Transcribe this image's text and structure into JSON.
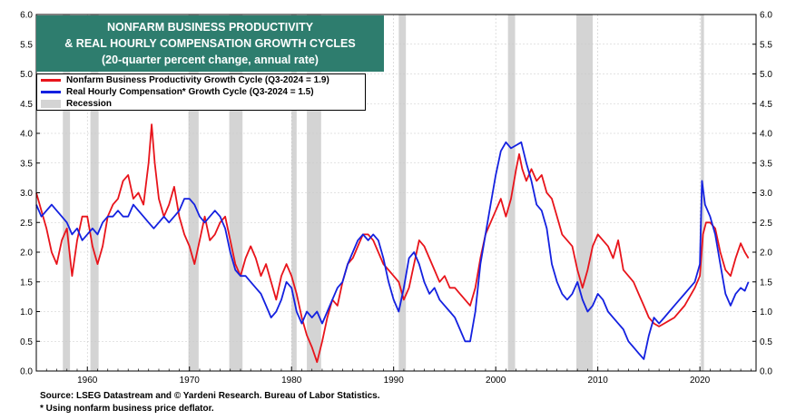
{
  "title": {
    "line1": "NONFARM BUSINESS PRODUCTIVITY",
    "line2": "& REAL HOURLY COMPENSATION GROWTH CYCLES",
    "line3": "(20-quarter percent change, annual rate)"
  },
  "legend": {
    "items": [
      {
        "label": "Nonfarm Business Productivity Growth Cycle (Q3-2024 = 1.9)",
        "color": "#e8141b"
      },
      {
        "label": "Real Hourly Compensation* Growth Cycle (Q3-2024 = 1.5)",
        "color": "#1421e0"
      },
      {
        "label": "Recession",
        "color": "#d4d4d4"
      }
    ]
  },
  "footer": {
    "source": "Source: LSEG Datastream and © Yardeni Research. Bureau of Labor Statistics.",
    "note": "* Using nonfarm business price deflator."
  },
  "chart_data": {
    "type": "line",
    "xlim": [
      1955,
      2025.5
    ],
    "ylim": [
      0,
      6
    ],
    "yticks": [
      "0.0",
      "0.5",
      "1.0",
      "1.5",
      "2.0",
      "2.5",
      "3.0",
      "3.5",
      "4.0",
      "4.5",
      "5.0",
      "5.5",
      "6.0"
    ],
    "xticks": [
      "1960",
      "1970",
      "1980",
      "1990",
      "2000",
      "2010",
      "2020"
    ],
    "grid": true,
    "legend_position": "top-left",
    "recessions": [
      [
        1957.6,
        1958.3
      ],
      [
        1960.3,
        1961.1
      ],
      [
        1969.9,
        1970.9
      ],
      [
        1973.9,
        1975.2
      ],
      [
        1980.0,
        1980.5
      ],
      [
        1981.5,
        1982.9
      ],
      [
        1990.5,
        1991.2
      ],
      [
        2001.2,
        2001.9
      ],
      [
        2007.9,
        2009.5
      ],
      [
        2020.1,
        2020.4
      ]
    ],
    "series": [
      {
        "name": "Nonfarm Business Productivity Growth Cycle (Q3-2024 = 1.9)",
        "color": "#e8141b",
        "points": [
          [
            1955.0,
            3.0
          ],
          [
            1955.5,
            2.7
          ],
          [
            1956.0,
            2.4
          ],
          [
            1956.5,
            2.0
          ],
          [
            1957.0,
            1.8
          ],
          [
            1957.5,
            2.2
          ],
          [
            1958.0,
            2.4
          ],
          [
            1958.5,
            1.6
          ],
          [
            1959.0,
            2.2
          ],
          [
            1959.5,
            2.6
          ],
          [
            1960.0,
            2.6
          ],
          [
            1960.5,
            2.1
          ],
          [
            1961.0,
            1.8
          ],
          [
            1961.5,
            2.1
          ],
          [
            1962.0,
            2.6
          ],
          [
            1962.5,
            2.8
          ],
          [
            1963.0,
            2.9
          ],
          [
            1963.5,
            3.2
          ],
          [
            1964.0,
            3.3
          ],
          [
            1964.5,
            2.9
          ],
          [
            1965.0,
            3.0
          ],
          [
            1965.5,
            2.8
          ],
          [
            1966.0,
            3.5
          ],
          [
            1966.3,
            4.15
          ],
          [
            1966.6,
            3.5
          ],
          [
            1967.0,
            2.9
          ],
          [
            1967.5,
            2.6
          ],
          [
            1968.0,
            2.8
          ],
          [
            1968.5,
            3.1
          ],
          [
            1969.0,
            2.6
          ],
          [
            1969.5,
            2.3
          ],
          [
            1970.0,
            2.1
          ],
          [
            1970.5,
            1.8
          ],
          [
            1971.0,
            2.2
          ],
          [
            1971.5,
            2.6
          ],
          [
            1972.0,
            2.2
          ],
          [
            1972.5,
            2.3
          ],
          [
            1973.0,
            2.5
          ],
          [
            1973.5,
            2.6
          ],
          [
            1974.0,
            2.2
          ],
          [
            1974.5,
            1.8
          ],
          [
            1975.0,
            1.6
          ],
          [
            1975.5,
            1.9
          ],
          [
            1976.0,
            2.1
          ],
          [
            1976.5,
            1.9
          ],
          [
            1977.0,
            1.6
          ],
          [
            1977.5,
            1.8
          ],
          [
            1978.0,
            1.5
          ],
          [
            1978.5,
            1.2
          ],
          [
            1979.0,
            1.6
          ],
          [
            1979.5,
            1.8
          ],
          [
            1980.0,
            1.6
          ],
          [
            1980.5,
            1.3
          ],
          [
            1981.0,
            0.9
          ],
          [
            1981.5,
            0.6
          ],
          [
            1982.0,
            0.4
          ],
          [
            1982.5,
            0.15
          ],
          [
            1983.0,
            0.5
          ],
          [
            1983.5,
            0.9
          ],
          [
            1984.0,
            1.2
          ],
          [
            1984.5,
            1.1
          ],
          [
            1985.0,
            1.5
          ],
          [
            1985.5,
            1.8
          ],
          [
            1986.0,
            1.9
          ],
          [
            1986.5,
            2.1
          ],
          [
            1987.0,
            2.3
          ],
          [
            1987.5,
            2.3
          ],
          [
            1988.0,
            2.2
          ],
          [
            1988.5,
            2.0
          ],
          [
            1989.0,
            1.8
          ],
          [
            1989.5,
            1.7
          ],
          [
            1990.0,
            1.6
          ],
          [
            1990.5,
            1.5
          ],
          [
            1991.0,
            1.2
          ],
          [
            1991.5,
            1.4
          ],
          [
            1992.0,
            1.8
          ],
          [
            1992.5,
            2.2
          ],
          [
            1993.0,
            2.1
          ],
          [
            1993.5,
            1.9
          ],
          [
            1994.0,
            1.7
          ],
          [
            1994.5,
            1.5
          ],
          [
            1995.0,
            1.6
          ],
          [
            1995.5,
            1.4
          ],
          [
            1996.0,
            1.4
          ],
          [
            1996.5,
            1.3
          ],
          [
            1997.0,
            1.2
          ],
          [
            1997.5,
            1.1
          ],
          [
            1998.0,
            1.4
          ],
          [
            1998.5,
            1.9
          ],
          [
            1999.0,
            2.3
          ],
          [
            1999.5,
            2.5
          ],
          [
            2000.0,
            2.7
          ],
          [
            2000.5,
            2.9
          ],
          [
            2001.0,
            2.6
          ],
          [
            2001.5,
            2.9
          ],
          [
            2002.0,
            3.4
          ],
          [
            2002.3,
            3.65
          ],
          [
            2002.6,
            3.4
          ],
          [
            2003.0,
            3.2
          ],
          [
            2003.5,
            3.4
          ],
          [
            2004.0,
            3.2
          ],
          [
            2004.5,
            3.3
          ],
          [
            2005.0,
            3.0
          ],
          [
            2005.5,
            2.9
          ],
          [
            2006.0,
            2.6
          ],
          [
            2006.5,
            2.3
          ],
          [
            2007.0,
            2.2
          ],
          [
            2007.5,
            2.1
          ],
          [
            2008.0,
            1.7
          ],
          [
            2008.5,
            1.4
          ],
          [
            2009.0,
            1.7
          ],
          [
            2009.5,
            2.1
          ],
          [
            2010.0,
            2.3
          ],
          [
            2010.5,
            2.2
          ],
          [
            2011.0,
            2.1
          ],
          [
            2011.5,
            1.9
          ],
          [
            2012.0,
            2.2
          ],
          [
            2012.5,
            1.7
          ],
          [
            2013.0,
            1.6
          ],
          [
            2013.5,
            1.5
          ],
          [
            2014.0,
            1.3
          ],
          [
            2014.5,
            1.1
          ],
          [
            2015.0,
            0.9
          ],
          [
            2015.5,
            0.8
          ],
          [
            2016.0,
            0.75
          ],
          [
            2016.5,
            0.8
          ],
          [
            2017.0,
            0.85
          ],
          [
            2017.5,
            0.9
          ],
          [
            2018.0,
            1.0
          ],
          [
            2018.5,
            1.1
          ],
          [
            2019.0,
            1.25
          ],
          [
            2019.5,
            1.4
          ],
          [
            2020.0,
            1.6
          ],
          [
            2020.3,
            2.3
          ],
          [
            2020.6,
            2.5
          ],
          [
            2021.0,
            2.5
          ],
          [
            2021.5,
            2.4
          ],
          [
            2022.0,
            2.0
          ],
          [
            2022.5,
            1.7
          ],
          [
            2023.0,
            1.6
          ],
          [
            2023.5,
            1.9
          ],
          [
            2024.0,
            2.15
          ],
          [
            2024.4,
            2.0
          ],
          [
            2024.75,
            1.9
          ]
        ]
      },
      {
        "name": "Real Hourly Compensation* Growth Cycle (Q3-2024 = 1.5)",
        "color": "#1421e0",
        "points": [
          [
            1955.0,
            2.8
          ],
          [
            1955.5,
            2.6
          ],
          [
            1956.0,
            2.7
          ],
          [
            1956.5,
            2.8
          ],
          [
            1957.0,
            2.7
          ],
          [
            1957.5,
            2.6
          ],
          [
            1958.0,
            2.5
          ],
          [
            1958.5,
            2.3
          ],
          [
            1959.0,
            2.4
          ],
          [
            1959.5,
            2.2
          ],
          [
            1960.0,
            2.3
          ],
          [
            1960.5,
            2.4
          ],
          [
            1961.0,
            2.3
          ],
          [
            1961.5,
            2.5
          ],
          [
            1962.0,
            2.6
          ],
          [
            1962.5,
            2.6
          ],
          [
            1963.0,
            2.7
          ],
          [
            1963.5,
            2.6
          ],
          [
            1964.0,
            2.6
          ],
          [
            1964.5,
            2.8
          ],
          [
            1965.0,
            2.7
          ],
          [
            1965.5,
            2.6
          ],
          [
            1966.0,
            2.5
          ],
          [
            1966.5,
            2.4
          ],
          [
            1967.0,
            2.5
          ],
          [
            1967.5,
            2.6
          ],
          [
            1968.0,
            2.5
          ],
          [
            1968.5,
            2.6
          ],
          [
            1969.0,
            2.7
          ],
          [
            1969.5,
            2.9
          ],
          [
            1970.0,
            2.9
          ],
          [
            1970.5,
            2.8
          ],
          [
            1971.0,
            2.6
          ],
          [
            1971.5,
            2.5
          ],
          [
            1972.0,
            2.6
          ],
          [
            1972.5,
            2.7
          ],
          [
            1973.0,
            2.6
          ],
          [
            1973.5,
            2.4
          ],
          [
            1974.0,
            2.0
          ],
          [
            1974.5,
            1.7
          ],
          [
            1975.0,
            1.6
          ],
          [
            1975.5,
            1.6
          ],
          [
            1976.0,
            1.5
          ],
          [
            1976.5,
            1.4
          ],
          [
            1977.0,
            1.3
          ],
          [
            1977.5,
            1.1
          ],
          [
            1978.0,
            0.9
          ],
          [
            1978.5,
            1.0
          ],
          [
            1979.0,
            1.2
          ],
          [
            1979.5,
            1.5
          ],
          [
            1980.0,
            1.4
          ],
          [
            1980.5,
            1.0
          ],
          [
            1981.0,
            0.8
          ],
          [
            1981.5,
            1.0
          ],
          [
            1982.0,
            0.9
          ],
          [
            1982.5,
            1.0
          ],
          [
            1983.0,
            0.8
          ],
          [
            1983.5,
            1.0
          ],
          [
            1984.0,
            1.2
          ],
          [
            1984.5,
            1.4
          ],
          [
            1985.0,
            1.5
          ],
          [
            1985.5,
            1.8
          ],
          [
            1986.0,
            2.0
          ],
          [
            1986.5,
            2.2
          ],
          [
            1987.0,
            2.3
          ],
          [
            1987.5,
            2.2
          ],
          [
            1988.0,
            2.3
          ],
          [
            1988.5,
            2.2
          ],
          [
            1989.0,
            1.9
          ],
          [
            1989.5,
            1.5
          ],
          [
            1990.0,
            1.2
          ],
          [
            1990.5,
            1.0
          ],
          [
            1991.0,
            1.4
          ],
          [
            1991.5,
            1.9
          ],
          [
            1992.0,
            2.0
          ],
          [
            1992.5,
            1.8
          ],
          [
            1993.0,
            1.5
          ],
          [
            1993.5,
            1.3
          ],
          [
            1994.0,
            1.4
          ],
          [
            1994.5,
            1.2
          ],
          [
            1995.0,
            1.1
          ],
          [
            1995.5,
            1.0
          ],
          [
            1996.0,
            0.9
          ],
          [
            1996.5,
            0.7
          ],
          [
            1997.0,
            0.5
          ],
          [
            1997.5,
            0.5
          ],
          [
            1998.0,
            1.0
          ],
          [
            1998.5,
            1.8
          ],
          [
            1999.0,
            2.3
          ],
          [
            1999.5,
            2.8
          ],
          [
            2000.0,
            3.3
          ],
          [
            2000.5,
            3.7
          ],
          [
            2001.0,
            3.85
          ],
          [
            2001.5,
            3.75
          ],
          [
            2002.0,
            3.8
          ],
          [
            2002.5,
            3.85
          ],
          [
            2003.0,
            3.5
          ],
          [
            2003.5,
            3.2
          ],
          [
            2004.0,
            2.8
          ],
          [
            2004.5,
            2.7
          ],
          [
            2005.0,
            2.4
          ],
          [
            2005.5,
            1.8
          ],
          [
            2006.0,
            1.5
          ],
          [
            2006.5,
            1.3
          ],
          [
            2007.0,
            1.2
          ],
          [
            2007.5,
            1.3
          ],
          [
            2008.0,
            1.5
          ],
          [
            2008.5,
            1.2
          ],
          [
            2009.0,
            1.0
          ],
          [
            2009.5,
            1.1
          ],
          [
            2010.0,
            1.3
          ],
          [
            2010.5,
            1.2
          ],
          [
            2011.0,
            1.0
          ],
          [
            2011.5,
            0.9
          ],
          [
            2012.0,
            0.8
          ],
          [
            2012.5,
            0.7
          ],
          [
            2013.0,
            0.5
          ],
          [
            2013.5,
            0.4
          ],
          [
            2014.0,
            0.3
          ],
          [
            2014.5,
            0.2
          ],
          [
            2015.0,
            0.6
          ],
          [
            2015.5,
            0.9
          ],
          [
            2016.0,
            0.8
          ],
          [
            2016.5,
            0.9
          ],
          [
            2017.0,
            1.0
          ],
          [
            2017.5,
            1.1
          ],
          [
            2018.0,
            1.2
          ],
          [
            2018.5,
            1.3
          ],
          [
            2019.0,
            1.4
          ],
          [
            2019.5,
            1.5
          ],
          [
            2020.0,
            1.8
          ],
          [
            2020.2,
            3.2
          ],
          [
            2020.5,
            2.8
          ],
          [
            2021.0,
            2.6
          ],
          [
            2021.5,
            2.3
          ],
          [
            2022.0,
            1.8
          ],
          [
            2022.5,
            1.3
          ],
          [
            2023.0,
            1.1
          ],
          [
            2023.5,
            1.3
          ],
          [
            2024.0,
            1.4
          ],
          [
            2024.4,
            1.35
          ],
          [
            2024.75,
            1.5
          ]
        ]
      }
    ]
  }
}
